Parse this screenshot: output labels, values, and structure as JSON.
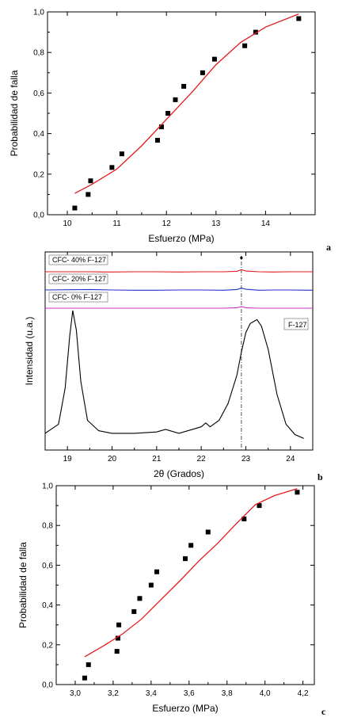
{
  "chart_data": [
    {
      "panel": "a",
      "type": "scatter",
      "xlabel": "Esfuerzo (MPa)",
      "ylabel": "Probabilidad de falla",
      "xlim": [
        9.6,
        15.0
      ],
      "ylim": [
        0.0,
        1.0
      ],
      "xticks": [
        "10",
        "11",
        "12",
        "13",
        "14"
      ],
      "yticks": [
        "0,0",
        "0,2",
        "0,4",
        "0,6",
        "0,8",
        "1,0"
      ],
      "grid": false,
      "series": [
        {
          "kind": "points",
          "color": "#000000",
          "x": [
            10.15,
            10.42,
            10.47,
            10.9,
            11.1,
            11.82,
            11.9,
            12.03,
            12.18,
            12.35,
            12.73,
            12.97,
            13.58,
            13.8,
            14.67
          ],
          "y": [
            0.033,
            0.1,
            0.167,
            0.233,
            0.3,
            0.367,
            0.433,
            0.5,
            0.567,
            0.633,
            0.7,
            0.767,
            0.833,
            0.9,
            0.967
          ]
        },
        {
          "kind": "line",
          "color": "#e31a1c",
          "x": [
            10.15,
            10.5,
            11.0,
            11.5,
            12.0,
            12.5,
            13.0,
            13.5,
            14.0,
            14.67
          ],
          "y": [
            0.105,
            0.15,
            0.225,
            0.34,
            0.47,
            0.6,
            0.74,
            0.85,
            0.925,
            0.99
          ]
        }
      ]
    },
    {
      "panel": "b",
      "type": "line",
      "xlabel": "2θ (Grados)",
      "ylabel": "Intensidad (u.a.)",
      "xlim": [
        18.5,
        24.5
      ],
      "xticks": [
        "19",
        "20",
        "21",
        "22",
        "23",
        "24"
      ],
      "marker_label": "♦",
      "marker_x": 22.9,
      "grid": false,
      "series": [
        {
          "name": "CFC- 40% F-127",
          "color": "#e31a1c",
          "x": [
            18.5,
            19.0,
            19.5,
            20.0,
            20.5,
            21.0,
            21.5,
            22.0,
            22.5,
            22.8,
            22.9,
            23.0,
            23.3,
            23.6,
            24.0,
            24.5
          ],
          "y": [
            0.0,
            0.0,
            0.0,
            -0.01,
            0.0,
            0.0,
            -0.01,
            0.0,
            0.0,
            0.02,
            0.09,
            0.03,
            0.0,
            -0.01,
            0.0,
            0.0
          ]
        },
        {
          "name": "CFC- 20% F-127",
          "color": "#2233cc",
          "x": [
            18.5,
            19.0,
            19.5,
            20.0,
            20.5,
            21.0,
            21.5,
            22.0,
            22.5,
            22.8,
            22.9,
            23.0,
            23.3,
            23.6,
            24.0,
            24.5
          ],
          "y": [
            0.0,
            0.01,
            0.02,
            0.0,
            -0.01,
            -0.01,
            0.0,
            0.0,
            -0.01,
            0.02,
            0.08,
            0.03,
            -0.01,
            0.0,
            0.0,
            -0.01
          ]
        },
        {
          "name": "CFC- 0% F-127",
          "color": "#cc33cc",
          "x": [
            18.5,
            19.0,
            19.5,
            20.0,
            20.5,
            21.0,
            21.5,
            22.0,
            22.5,
            22.8,
            22.9,
            23.0,
            23.3,
            23.6,
            24.0,
            24.5
          ],
          "y": [
            0.0,
            0.0,
            0.0,
            0.0,
            0.0,
            0.0,
            0.0,
            0.0,
            0.0,
            0.02,
            0.07,
            0.02,
            0.0,
            0.0,
            0.0,
            0.0
          ]
        },
        {
          "name": "F-127",
          "color": "#000000",
          "x": [
            18.5,
            18.8,
            18.95,
            19.05,
            19.12,
            19.2,
            19.3,
            19.45,
            19.7,
            20.0,
            20.5,
            21.0,
            21.2,
            21.5,
            22.0,
            22.1,
            22.2,
            22.4,
            22.6,
            22.8,
            22.9,
            23.0,
            23.1,
            23.25,
            23.35,
            23.5,
            23.7,
            23.9,
            24.1,
            24.3
          ],
          "y": [
            0.05,
            0.12,
            0.4,
            0.8,
            1.0,
            0.85,
            0.45,
            0.15,
            0.07,
            0.05,
            0.05,
            0.06,
            0.08,
            0.05,
            0.1,
            0.13,
            0.1,
            0.15,
            0.28,
            0.5,
            0.68,
            0.83,
            0.9,
            0.93,
            0.88,
            0.7,
            0.35,
            0.12,
            0.04,
            0.01
          ]
        }
      ]
    },
    {
      "panel": "c",
      "type": "scatter",
      "xlabel": "Esfuerzo (MPa)",
      "ylabel": "Probabilidad de falla",
      "xlim": [
        2.9,
        4.26
      ],
      "ylim": [
        0.0,
        1.0
      ],
      "xticks": [
        "3,0",
        "3,2",
        "3,4",
        "3,6",
        "3,8",
        "4,0",
        "4,2"
      ],
      "yticks": [
        "0,0",
        "0,2",
        "0,4",
        "0,6",
        "0,8",
        "1,0"
      ],
      "grid": false,
      "series": [
        {
          "kind": "points",
          "color": "#000000",
          "x": [
            3.05,
            3.07,
            3.22,
            3.225,
            3.23,
            3.31,
            3.34,
            3.4,
            3.43,
            3.58,
            3.61,
            3.7,
            3.89,
            3.97,
            4.17
          ],
          "y": [
            0.033,
            0.1,
            0.167,
            0.233,
            0.3,
            0.367,
            0.433,
            0.5,
            0.567,
            0.633,
            0.7,
            0.767,
            0.833,
            0.9,
            0.967
          ]
        },
        {
          "kind": "line",
          "color": "#e31a1c",
          "x": [
            3.05,
            3.15,
            3.25,
            3.35,
            3.45,
            3.55,
            3.65,
            3.75,
            3.85,
            3.95,
            4.05,
            4.17
          ],
          "y": [
            0.14,
            0.195,
            0.255,
            0.33,
            0.425,
            0.52,
            0.62,
            0.71,
            0.81,
            0.905,
            0.95,
            0.985
          ]
        }
      ]
    }
  ]
}
